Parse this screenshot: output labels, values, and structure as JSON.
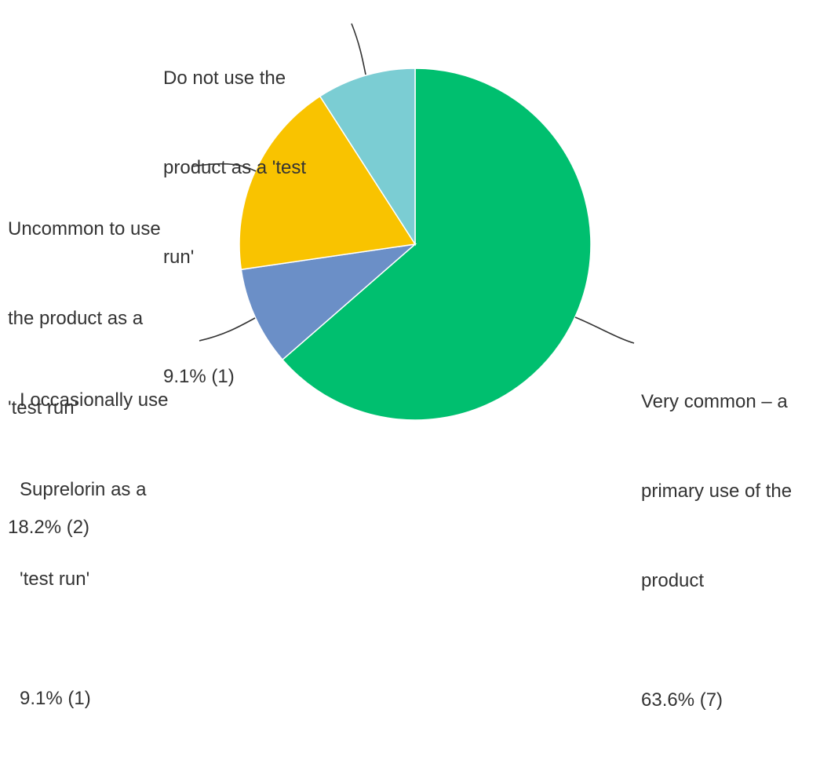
{
  "chart_data": {
    "type": "pie",
    "title": "",
    "start_angle_deg": 0,
    "direction": "clockwise",
    "slices": [
      {
        "label_lines": [
          "Very common – a",
          "primary use of the",
          "product"
        ],
        "value_text": "63.6% (7)",
        "percent": 63.6,
        "count": 7,
        "color": "#00bf6f"
      },
      {
        "label_lines": [
          "I occasionally use",
          "Suprelorin as a",
          "'test run'"
        ],
        "value_text": "9.1% (1)",
        "percent": 9.1,
        "count": 1,
        "color": "#6b8fc7"
      },
      {
        "label_lines": [
          "Uncommon to use",
          "the product as a",
          "'test run'"
        ],
        "value_text": "18.2% (2)",
        "percent": 18.2,
        "count": 2,
        "color": "#f9c300"
      },
      {
        "label_lines": [
          "Do not use the",
          "product as a 'test",
          "run'"
        ],
        "value_text": "9.1% (1)",
        "percent": 9.1,
        "count": 1,
        "color": "#7bcdd3"
      }
    ]
  }
}
